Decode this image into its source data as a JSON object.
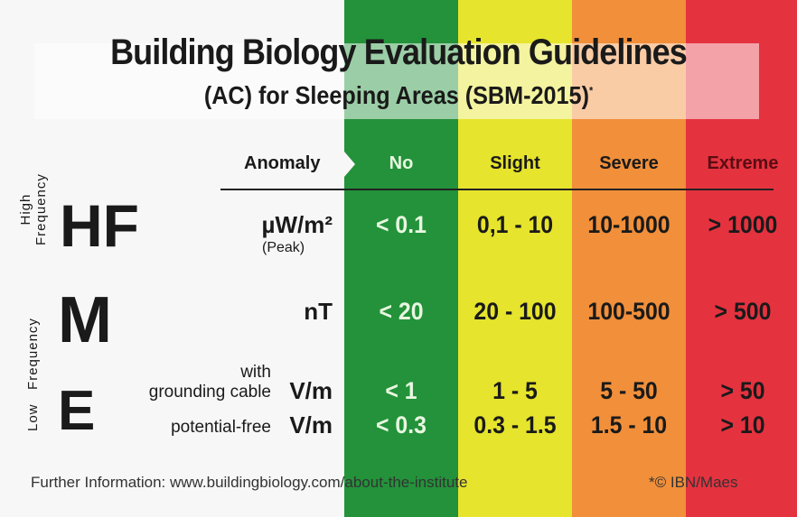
{
  "colors": {
    "no": "#23923a",
    "slight": "#e6e42c",
    "severe": "#f18f3a",
    "extreme": "#e5323f"
  },
  "title": "Building Biology Evaluation Guidelines",
  "subtitle": "(AC) for Sleeping Areas (SBM-2015)",
  "subtitle_mark": "*",
  "header": {
    "anomaly": "Anomaly",
    "columns": [
      "No",
      "Slight",
      "Severe",
      "Extreme"
    ]
  },
  "sections": {
    "high": [
      "High",
      "Frequency"
    ],
    "low": [
      "Low",
      "Frequency"
    ]
  },
  "rows": {
    "hf": {
      "symbol": "HF",
      "unit": "µW/m²",
      "note": "(Peak)",
      "values": [
        "< 0.1",
        "0,1 - 10",
        "10-1000",
        "> 1000"
      ]
    },
    "m": {
      "symbol": "M",
      "unit": "nT",
      "values": [
        "< 20",
        "20 - 100",
        "100-500",
        "> 500"
      ]
    },
    "e": {
      "symbol": "E",
      "grounded": {
        "label_top": "with",
        "label": "grounding cable",
        "unit": "V/m",
        "values": [
          "< 1",
          "1 - 5",
          "5 - 50",
          "> 50"
        ]
      },
      "free": {
        "label": "potential-free",
        "unit": "V/m",
        "values": [
          "< 0.3",
          "0.3 - 1.5",
          "1.5 - 10",
          "> 10"
        ]
      }
    }
  },
  "footer": {
    "info": "Further Information:  www.buildingbiology.com/about-the-institute",
    "credit": "*© IBN/Maes"
  }
}
